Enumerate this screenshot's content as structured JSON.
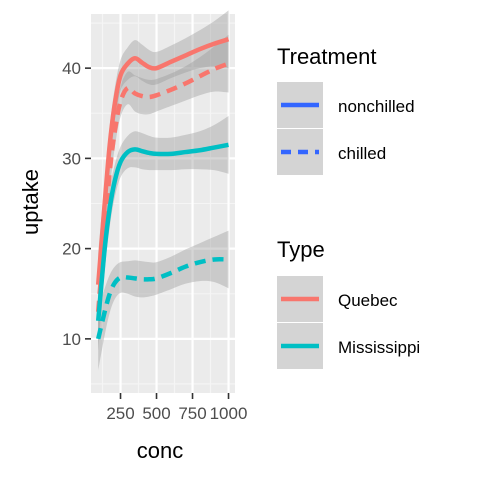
{
  "chart_data": {
    "type": "line",
    "title": "",
    "xlabel": "conc",
    "ylabel": "uptake",
    "xlim": [
      45,
      1045
    ],
    "ylim": [
      4,
      46
    ],
    "x_ticks": [
      250,
      500,
      750,
      1000
    ],
    "x_tick_labels": [
      "250",
      "500",
      "750",
      "1000"
    ],
    "y_ticks": [
      10,
      20,
      30,
      40
    ],
    "y_tick_labels": [
      "10",
      "20",
      "30",
      "40"
    ],
    "grid": true,
    "legend_position": "right",
    "colors": {
      "panel": "#ebebeb",
      "grid_major": "#ffffff",
      "grid_minor": "#f5f5f5",
      "ribbon": "#999999",
      "legend_key": "#d4d4d4",
      "legend_line": "#3366ff",
      "Quebec": "#f8766d",
      "Mississippi": "#00bfc4"
    },
    "legends": [
      {
        "title": "Treatment",
        "entries": [
          {
            "label": "nonchilled",
            "linetype": "solid"
          },
          {
            "label": "chilled",
            "linetype": "dashed"
          }
        ]
      },
      {
        "title": "Type",
        "entries": [
          {
            "label": "Quebec",
            "color": "#f8766d"
          },
          {
            "label": "Mississippi",
            "color": "#00bfc4"
          }
        ]
      }
    ],
    "series": [
      {
        "name": "Quebec nonchilled",
        "type": "Quebec",
        "treatment": "nonchilled",
        "x": [
          95,
          140,
          175,
          210,
          250,
          300,
          350,
          400,
          450,
          500,
          600,
          700,
          800,
          900,
          1000
        ],
        "y": [
          16,
          25,
          31.5,
          36,
          39.2,
          40.5,
          41.1,
          40.6,
          40.1,
          40.0,
          40.7,
          41.4,
          42.1,
          42.7,
          43.2
        ],
        "se": [
          3.5,
          2.6,
          2.1,
          1.8,
          1.7,
          1.8,
          2.0,
          2.0,
          1.9,
          1.8,
          1.8,
          1.9,
          2.1,
          2.5,
          3.2
        ]
      },
      {
        "name": "Quebec chilled",
        "type": "Quebec",
        "treatment": "chilled",
        "x": [
          95,
          140,
          175,
          210,
          250,
          300,
          350,
          400,
          450,
          500,
          600,
          700,
          800,
          900,
          1000
        ],
        "y": [
          13,
          22,
          28.5,
          33,
          36.3,
          37.8,
          37.2,
          36.9,
          36.8,
          37.0,
          37.6,
          38.3,
          39.1,
          39.9,
          40.5
        ],
        "se": [
          3.5,
          2.6,
          2.1,
          1.8,
          1.7,
          1.8,
          2.0,
          2.0,
          1.9,
          1.8,
          1.8,
          1.9,
          2.1,
          2.5,
          3.2
        ]
      },
      {
        "name": "Mississippi nonchilled",
        "type": "Mississippi",
        "treatment": "nonchilled",
        "x": [
          95,
          140,
          175,
          210,
          250,
          300,
          350,
          400,
          450,
          500,
          600,
          700,
          800,
          900,
          1000
        ],
        "y": [
          12,
          20,
          24.5,
          27.5,
          29.6,
          30.7,
          31.0,
          30.8,
          30.6,
          30.5,
          30.5,
          30.7,
          30.9,
          31.2,
          31.5
        ],
        "se": [
          3.5,
          2.6,
          2.1,
          1.8,
          1.7,
          1.8,
          2.0,
          2.0,
          1.9,
          1.8,
          1.8,
          1.9,
          2.1,
          2.5,
          3.2
        ]
      },
      {
        "name": "Mississippi chilled",
        "type": "Mississippi",
        "treatment": "chilled",
        "x": [
          95,
          140,
          175,
          210,
          250,
          300,
          350,
          400,
          450,
          500,
          600,
          700,
          800,
          900,
          1000
        ],
        "y": [
          10,
          13,
          15,
          16.2,
          16.8,
          16.8,
          16.7,
          16.6,
          16.6,
          16.7,
          17.3,
          18.0,
          18.5,
          18.8,
          18.8
        ],
        "se": [
          3.5,
          2.6,
          2.1,
          1.8,
          1.7,
          1.8,
          2.0,
          2.0,
          1.9,
          1.8,
          1.8,
          1.9,
          2.1,
          2.5,
          3.2
        ]
      }
    ]
  }
}
